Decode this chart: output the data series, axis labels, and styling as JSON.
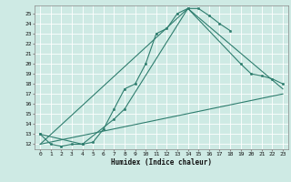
{
  "xlabel": "Humidex (Indice chaleur)",
  "bg_color": "#ceeae4",
  "grid_color": "#b0d8d0",
  "line_color": "#2e7d6e",
  "xlim": [
    -0.5,
    23.5
  ],
  "ylim": [
    11.5,
    25.8
  ],
  "xticks": [
    0,
    1,
    2,
    3,
    4,
    5,
    6,
    7,
    8,
    9,
    10,
    11,
    12,
    13,
    14,
    15,
    16,
    17,
    18,
    19,
    20,
    21,
    22,
    23
  ],
  "yticks": [
    12,
    13,
    14,
    15,
    16,
    17,
    18,
    19,
    20,
    21,
    22,
    23,
    24,
    25
  ],
  "lines": [
    {
      "x": [
        0,
        1,
        2,
        3,
        4,
        5,
        6,
        7,
        8,
        9,
        10,
        11,
        12,
        13,
        14,
        15,
        16,
        17,
        18
      ],
      "y": [
        13,
        12,
        11.8,
        12,
        12,
        12.2,
        13.5,
        15.5,
        17.5,
        18,
        20,
        23,
        23.5,
        25,
        25.5,
        25.5,
        24.8,
        24,
        23.3
      ],
      "markers": true
    },
    {
      "x": [
        0,
        4,
        7,
        8,
        14,
        19,
        20,
        21,
        22,
        23
      ],
      "y": [
        13,
        12,
        14.5,
        15.5,
        25.5,
        20,
        19,
        18.8,
        18.5,
        18
      ],
      "markers": true
    },
    {
      "x": [
        0,
        23
      ],
      "y": [
        12,
        17
      ],
      "markers": false
    },
    {
      "x": [
        0,
        14,
        23
      ],
      "y": [
        12,
        25.5,
        17.5
      ],
      "markers": false
    }
  ]
}
